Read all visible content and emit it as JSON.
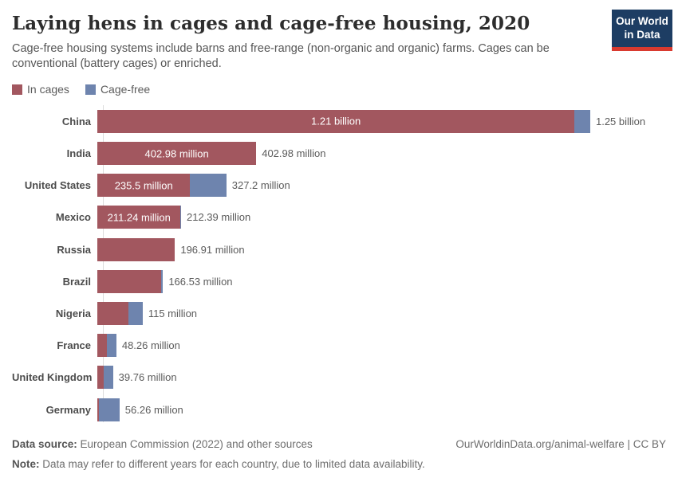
{
  "header": {
    "title": "Laying hens in cages and cage-free housing, 2020",
    "subtitle": "Cage-free housing systems include barns and free-range (non-organic and organic) farms. Cages can be conventional (battery cages) or enriched.",
    "logo": {
      "line1": "Our World",
      "line2": "in Data"
    }
  },
  "legend": {
    "items": [
      {
        "label": "In cages",
        "color": "#a2575f"
      },
      {
        "label": "Cage-free",
        "color": "#6e84ae"
      }
    ]
  },
  "chart_data": {
    "type": "bar",
    "orientation": "horizontal",
    "stacked": true,
    "title": "Laying hens in cages and cage-free housing, 2020",
    "unit": "hens (millions)",
    "axis_max_millions": 1250,
    "grid": false,
    "legend_position": "top-left",
    "categories": [
      "China",
      "India",
      "United States",
      "Mexico",
      "Russia",
      "Brazil",
      "Nigeria",
      "France",
      "United Kingdom",
      "Germany"
    ],
    "series": [
      {
        "name": "In cages",
        "color": "#a2575f",
        "values_millions": [
          1210,
          402.98,
          235.5,
          211.24,
          196.91,
          161,
          79,
          23.4,
          16,
          3.3
        ]
      },
      {
        "name": "Cage-free",
        "color": "#6e84ae",
        "values_millions": [
          40,
          0,
          91.7,
          1.15,
          0,
          5.53,
          36,
          24.86,
          23.76,
          52.96
        ]
      }
    ],
    "bar_inner_labels": [
      "1.21 billion",
      "402.98 million",
      "235.5 million",
      "211.24 million",
      "",
      "",
      "",
      "",
      "",
      ""
    ],
    "total_labels": [
      "1.25 billion",
      "402.98 million",
      "327.2 million",
      "212.39 million",
      "196.91 million",
      "166.53 million",
      "115 million",
      "48.26 million",
      "39.76 million",
      "56.26 million"
    ]
  },
  "footer": {
    "source_label": "Data source:",
    "source_text": "European Commission (2022) and other sources",
    "note_label": "Note:",
    "note_text": "Data may refer to different years for each country, due to limited data availability.",
    "link": "OurWorldinData.org/animal-welfare | CC BY"
  }
}
